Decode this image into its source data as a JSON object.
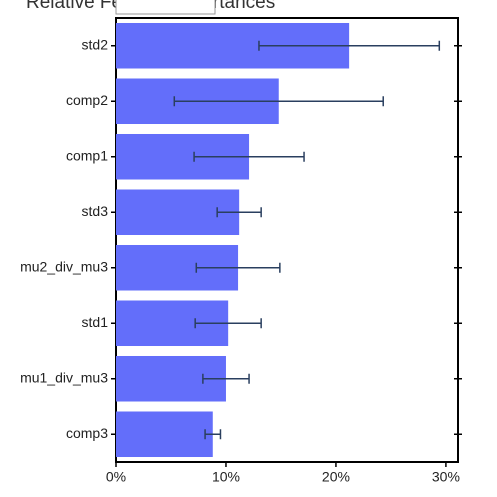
{
  "chart_data": {
    "type": "bar",
    "orientation": "horizontal",
    "title": "Relative Feature Importances",
    "categories": [
      "std2",
      "comp2",
      "comp1",
      "std3",
      "mu2_div_mu3",
      "std1",
      "mu1_div_mu3",
      "comp3"
    ],
    "values": [
      21.2,
      14.8,
      12.1,
      11.2,
      11.1,
      10.2,
      10.0,
      8.8
    ],
    "errors": [
      8.2,
      9.5,
      5.0,
      2.0,
      3.8,
      3.0,
      2.1,
      0.7
    ],
    "color": "#636efa",
    "error_color": "#2a3f5f",
    "xlim": [
      0,
      31.1
    ],
    "xticks": [
      {
        "value": 0,
        "label": "0%"
      },
      {
        "value": 10,
        "label": "10%"
      },
      {
        "value": 20,
        "label": "20%"
      },
      {
        "value": 30,
        "label": "30%"
      }
    ]
  }
}
